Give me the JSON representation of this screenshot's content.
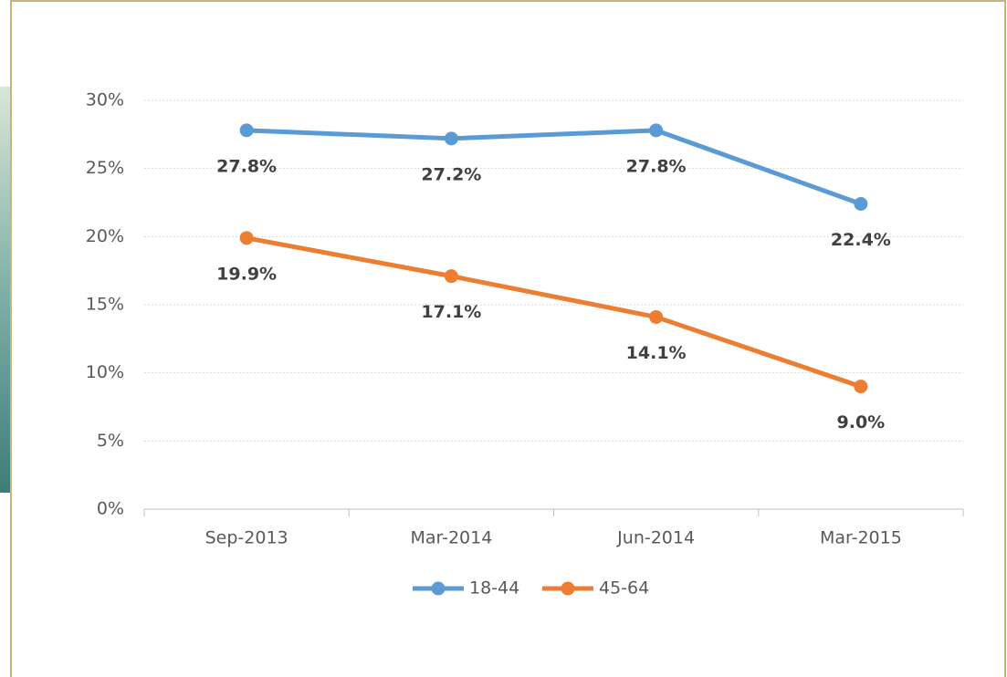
{
  "chart_data": {
    "type": "line",
    "categories": [
      "Sep-2013",
      "Mar-2014",
      "Jun-2014",
      "Mar-2015"
    ],
    "series": [
      {
        "name": "18-44",
        "color": "#5b9bd5",
        "values": [
          27.8,
          27.2,
          27.8,
          22.4
        ],
        "value_labels": [
          "27.8%",
          "27.2%",
          "27.8%",
          "22.4%"
        ]
      },
      {
        "name": "45-64",
        "color": "#ed7d31",
        "values": [
          19.9,
          17.1,
          14.1,
          9.0
        ],
        "value_labels": [
          "19.9%",
          "17.1%",
          "14.1%",
          "9.0%"
        ]
      }
    ],
    "ylim": [
      0,
      30
    ],
    "yticks": [
      {
        "value": 0,
        "label": "0%"
      },
      {
        "value": 5,
        "label": "5%"
      },
      {
        "value": 10,
        "label": "10%"
      },
      {
        "value": 15,
        "label": "15%"
      },
      {
        "value": 20,
        "label": "20%"
      },
      {
        "value": 25,
        "label": "25%"
      },
      {
        "value": 30,
        "label": "30%"
      }
    ],
    "grid": true,
    "legend": "bottom"
  }
}
